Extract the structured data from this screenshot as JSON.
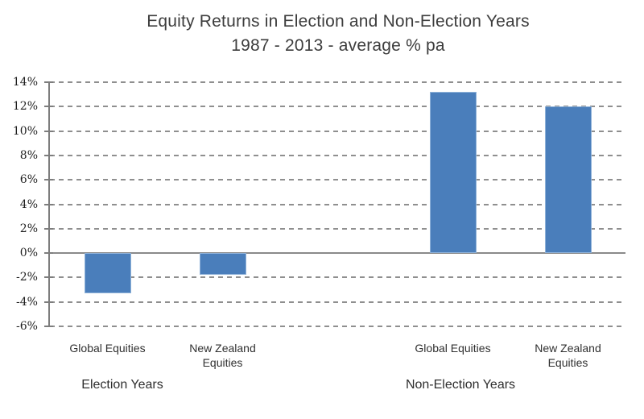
{
  "chart_data": {
    "type": "bar",
    "title": "Equity Returns in Election and Non-Election Years",
    "subtitle": "1987 - 2013 - average % pa",
    "ylabel": "",
    "xlabel": "",
    "ylim": [
      -6,
      14
    ],
    "y_tick_step": 2,
    "y_tick_values": [
      14,
      12,
      10,
      8,
      6,
      4,
      2,
      0,
      -2,
      -4,
      -6
    ],
    "y_tick_labels": [
      "14%",
      "12%",
      "10%",
      "8%",
      "6%",
      "4%",
      "2%",
      "0%",
      "-2%",
      "-4%",
      "-6%"
    ],
    "grid": "horizontal-dashed",
    "legend": "none",
    "bar_color": "#4a7ebb",
    "gridline_color": "#8f8f8f",
    "axis_color": "#7d7d7d",
    "slot_count": 5,
    "groups": [
      {
        "label": "Election Years",
        "categories": [
          "Global Equities",
          "New Zealand Equities"
        ],
        "values": [
          -3.3,
          -1.8
        ]
      },
      {
        "label": "Non-Election Years",
        "categories": [
          "Global Equities",
          "New Zealand Equities"
        ],
        "values": [
          13.2,
          12.0
        ]
      }
    ],
    "bars": [
      {
        "group": "Election Years",
        "category": "Global Equities",
        "value": -3.3,
        "slot": 0
      },
      {
        "group": "Election Years",
        "category": "New Zealand Equities",
        "value": -1.8,
        "slot": 1
      },
      {
        "group": "Non-Election Years",
        "category": "Global Equities",
        "value": 13.2,
        "slot": 3
      },
      {
        "group": "Non-Election Years",
        "category": "New Zealand Equities",
        "value": 12.0,
        "slot": 4
      }
    ]
  }
}
